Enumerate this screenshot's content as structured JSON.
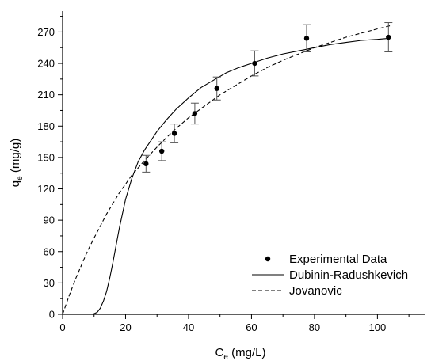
{
  "chart_data": {
    "type": "scatter",
    "title": "",
    "xlabel": {
      "main": "C",
      "sub": "e",
      "rest": " (mg/L)"
    },
    "ylabel": {
      "main": "q",
      "sub": "e",
      "rest": " (mg/g)"
    },
    "xlim": [
      0,
      115
    ],
    "ylim": [
      0,
      290
    ],
    "xticks": [
      0,
      20,
      40,
      60,
      80,
      100
    ],
    "yticks": [
      0,
      30,
      60,
      90,
      120,
      150,
      180,
      210,
      240,
      270
    ],
    "grid": false,
    "legend_position": "bottom-right",
    "series": [
      {
        "name": "Experimental Data",
        "kind": "points",
        "x": [
          26.5,
          31.5,
          35.5,
          42,
          49,
          61,
          77.5,
          103.5
        ],
        "y": [
          144,
          156,
          173,
          192,
          216,
          240,
          264,
          265
        ],
        "yerr": [
          8,
          9,
          9,
          10,
          11,
          12,
          13,
          14
        ]
      },
      {
        "name": "Dubinin-Radushkevich",
        "kind": "line",
        "style": "solid",
        "x": [
          9.5,
          11,
          12,
          13,
          14,
          15,
          16,
          18,
          20,
          22,
          24,
          26,
          28,
          30,
          33,
          36,
          40,
          44,
          48,
          52,
          56,
          60,
          65,
          70,
          75,
          80,
          85,
          90,
          95,
          100,
          104
        ],
        "y": [
          0,
          2,
          6,
          13,
          22,
          35,
          50,
          82,
          110,
          130,
          146,
          157,
          166,
          175,
          186,
          196,
          207,
          217,
          224,
          231,
          236,
          240,
          245,
          249,
          252,
          255,
          258,
          260,
          262,
          263,
          264
        ]
      },
      {
        "name": "Jovanovic",
        "kind": "line",
        "style": "dashed",
        "x": [
          0,
          2,
          4,
          6,
          8,
          10,
          14,
          18,
          22,
          26,
          30,
          35,
          40,
          45,
          50,
          55,
          60,
          65,
          70,
          75,
          80,
          85,
          90,
          95,
          100,
          104
        ],
        "y": [
          0,
          17,
          33,
          47,
          61,
          73,
          96,
          116,
          133,
          147,
          160,
          175,
          188,
          199,
          210,
          219,
          228,
          236,
          243,
          249,
          255,
          260,
          265,
          269,
          273,
          276
        ]
      }
    ]
  }
}
